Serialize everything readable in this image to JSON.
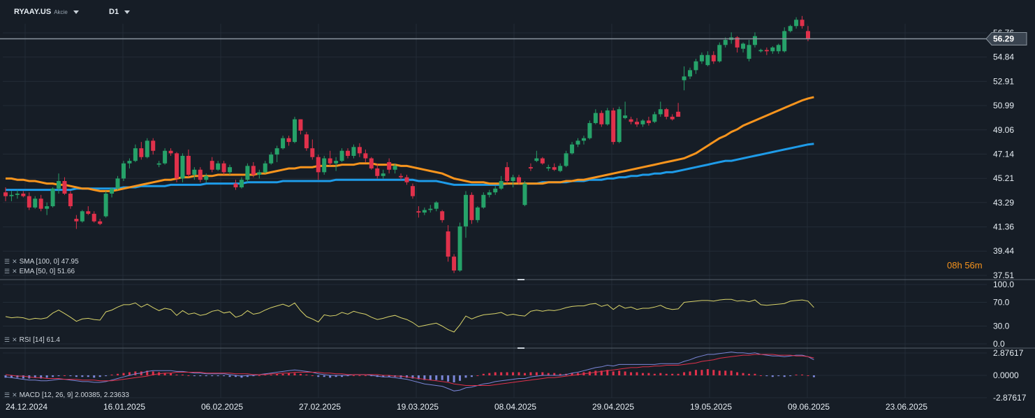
{
  "header": {
    "symbol": "RYAAY.US",
    "symbol_type": "Akcie",
    "timeframe": "D1"
  },
  "colors": {
    "background": "#161d26",
    "grid": "#232c37",
    "bull": "#26a269",
    "bear": "#e0314b",
    "sma": "#1e9be8",
    "ema": "#f7941d",
    "rsi": "#d9d46a",
    "macd_line": "#7b86d8",
    "signal_line": "#e0314b",
    "hist_pos": "#e0314b",
    "hist_neg": "#7b86d8"
  },
  "price_panel": {
    "y_ticks": [
      "56.76",
      "54.84",
      "52.91",
      "50.99",
      "49.06",
      "47.14",
      "45.21",
      "43.29",
      "41.36",
      "39.44",
      "37.51"
    ],
    "current_price": "56.29",
    "sma_label": "SMA [100, 0] 47.95",
    "ema_label": "EMA [50, 0] 51.66",
    "timer_hours": "08",
    "timer_h": "h",
    "timer_minutes": "56",
    "timer_m": "m"
  },
  "rsi_panel": {
    "label": "RSI [14] 61.4",
    "y_ticks": [
      "100.0",
      "70.0",
      "30.0",
      "0.0"
    ]
  },
  "macd_panel": {
    "label": "MACD [12, 26, 9] 2.00385, 2.23633",
    "y_ticks": [
      "2.87617",
      "0.0000",
      "-2.87617"
    ]
  },
  "x_axis": {
    "labels": [
      "24.12.2024",
      "16.01.2025",
      "06.02.2025",
      "27.02.2025",
      "19.03.2025",
      "08.04.2025",
      "29.04.2025",
      "19.05.2025",
      "09.06.2025",
      "23.06.2025"
    ]
  },
  "chart_data": {
    "type": "candlestick",
    "timeframe": "D1",
    "ylim": [
      37.51,
      57.3
    ],
    "candles": [
      [
        44.1,
        44.5,
        43.4,
        43.8
      ],
      [
        43.8,
        44.2,
        43.4,
        43.9
      ],
      [
        43.9,
        44.3,
        43.6,
        44.0
      ],
      [
        44.0,
        44.2,
        43.7,
        43.8
      ],
      [
        43.8,
        44.1,
        42.7,
        42.9
      ],
      [
        42.9,
        43.8,
        42.8,
        43.6
      ],
      [
        43.6,
        43.9,
        42.6,
        42.8
      ],
      [
        42.8,
        43.3,
        42.3,
        43.0
      ],
      [
        43.0,
        44.5,
        42.9,
        44.4
      ],
      [
        44.4,
        45.6,
        44.0,
        45.0
      ],
      [
        45.0,
        45.3,
        43.9,
        44.0
      ],
      [
        44.0,
        44.2,
        42.8,
        43.0
      ],
      [
        42.0,
        42.3,
        41.2,
        41.8
      ],
      [
        41.8,
        42.7,
        41.7,
        42.6
      ],
      [
        42.6,
        43.0,
        42.3,
        42.4
      ],
      [
        42.4,
        42.6,
        41.7,
        41.8
      ],
      [
        41.8,
        42.0,
        41.5,
        41.6
      ],
      [
        42.2,
        44.2,
        42.1,
        44.0
      ],
      [
        44.0,
        44.5,
        43.7,
        44.4
      ],
      [
        44.4,
        45.4,
        44.3,
        45.2
      ],
      [
        45.2,
        46.6,
        45.0,
        46.4
      ],
      [
        46.4,
        46.8,
        46.0,
        46.6
      ],
      [
        46.6,
        47.9,
        46.5,
        47.6
      ],
      [
        47.6,
        48.1,
        46.7,
        46.9
      ],
      [
        46.9,
        48.4,
        46.8,
        48.2
      ],
      [
        48.2,
        48.4,
        47.1,
        47.4
      ],
      [
        46.3,
        46.6,
        46.1,
        46.4
      ],
      [
        46.4,
        47.6,
        46.3,
        47.4
      ],
      [
        47.4,
        47.6,
        47.0,
        47.2
      ],
      [
        47.2,
        47.3,
        44.9,
        45.2
      ],
      [
        45.2,
        47.2,
        44.9,
        47.0
      ],
      [
        47.0,
        47.5,
        45.3,
        45.5
      ],
      [
        45.5,
        46.1,
        45.1,
        45.9
      ],
      [
        45.9,
        46.1,
        44.9,
        45.1
      ],
      [
        45.1,
        45.6,
        44.9,
        45.4
      ],
      [
        46.6,
        46.9,
        45.7,
        45.9
      ],
      [
        45.9,
        46.6,
        45.8,
        46.4
      ],
      [
        46.4,
        46.6,
        45.5,
        45.7
      ],
      [
        45.7,
        46.3,
        45.5,
        46.1
      ],
      [
        44.8,
        45.1,
        44.3,
        44.5
      ],
      [
        44.5,
        45.3,
        44.4,
        45.1
      ],
      [
        45.1,
        46.4,
        44.9,
        46.2
      ],
      [
        46.2,
        46.5,
        45.3,
        45.5
      ],
      [
        45.5,
        45.9,
        45.2,
        45.7
      ],
      [
        45.7,
        46.6,
        45.6,
        46.4
      ],
      [
        46.4,
        47.3,
        46.3,
        47.1
      ],
      [
        47.1,
        47.8,
        46.5,
        47.6
      ],
      [
        47.6,
        48.6,
        47.5,
        48.4
      ],
      [
        48.4,
        48.6,
        47.8,
        48.1
      ],
      [
        48.1,
        50.1,
        48.0,
        49.9
      ],
      [
        49.9,
        49.9,
        48.7,
        49.0
      ],
      [
        48.7,
        48.9,
        47.4,
        47.6
      ],
      [
        47.6,
        48.3,
        46.7,
        46.9
      ],
      [
        46.9,
        47.1,
        45.1,
        45.7
      ],
      [
        45.7,
        47.0,
        45.5,
        46.8
      ],
      [
        46.8,
        47.4,
        46.2,
        46.4
      ],
      [
        46.4,
        46.9,
        45.8,
        46.6
      ],
      [
        46.6,
        47.6,
        46.5,
        47.4
      ],
      [
        47.4,
        47.6,
        46.8,
        47.0
      ],
      [
        47.0,
        47.9,
        46.8,
        47.7
      ],
      [
        47.7,
        48.0,
        46.9,
        47.2
      ],
      [
        47.2,
        47.5,
        46.5,
        46.8
      ],
      [
        46.8,
        46.9,
        45.9,
        46.0
      ],
      [
        46.0,
        46.4,
        45.2,
        45.4
      ],
      [
        45.4,
        45.9,
        45.2,
        45.6
      ],
      [
        46.5,
        46.8,
        45.6,
        45.9
      ],
      [
        45.9,
        46.4,
        45.6,
        46.2
      ],
      [
        45.4,
        45.6,
        45.1,
        45.3
      ],
      [
        45.3,
        45.5,
        44.7,
        44.9
      ],
      [
        44.6,
        44.8,
        43.6,
        43.8
      ],
      [
        42.6,
        43.0,
        42.1,
        42.5
      ],
      [
        42.5,
        42.9,
        42.3,
        42.7
      ],
      [
        42.7,
        43.1,
        42.5,
        42.8
      ],
      [
        42.8,
        43.4,
        42.6,
        43.3
      ],
      [
        42.6,
        42.7,
        41.7,
        41.9
      ],
      [
        41.0,
        41.5,
        38.6,
        39.0
      ],
      [
        39.0,
        39.2,
        37.7,
        37.9
      ],
      [
        37.9,
        41.7,
        37.8,
        41.4
      ],
      [
        41.4,
        44.2,
        40.5,
        43.9
      ],
      [
        43.9,
        44.1,
        41.6,
        41.9
      ],
      [
        41.9,
        43.0,
        41.7,
        42.9
      ],
      [
        42.9,
        44.1,
        42.8,
        43.9
      ],
      [
        43.9,
        44.3,
        43.7,
        44.1
      ],
      [
        44.1,
        44.6,
        43.9,
        44.4
      ],
      [
        44.4,
        45.4,
        44.3,
        45.0
      ],
      [
        46.1,
        46.5,
        44.8,
        45.0
      ],
      [
        45.0,
        45.5,
        44.5,
        45.3
      ],
      [
        45.3,
        45.5,
        44.7,
        44.9
      ],
      [
        43.1,
        45.0,
        43.0,
        44.8
      ],
      [
        46.1,
        46.4,
        45.8,
        46.0
      ],
      [
        46.6,
        47.4,
        46.5,
        46.8
      ],
      [
        46.8,
        46.9,
        46.3,
        46.4
      ],
      [
        46.0,
        46.3,
        45.8,
        46.1
      ],
      [
        46.1,
        46.4,
        45.8,
        45.9
      ],
      [
        45.8,
        46.4,
        45.7,
        46.2
      ],
      [
        46.2,
        47.4,
        46.1,
        47.2
      ],
      [
        47.2,
        48.1,
        47.1,
        47.9
      ],
      [
        47.9,
        48.4,
        47.7,
        48.2
      ],
      [
        48.2,
        48.6,
        47.9,
        48.4
      ],
      [
        48.4,
        49.8,
        48.3,
        49.6
      ],
      [
        49.6,
        50.7,
        49.5,
        50.4
      ],
      [
        50.4,
        50.6,
        49.3,
        49.5
      ],
      [
        49.5,
        50.8,
        49.4,
        50.6
      ],
      [
        50.6,
        50.8,
        47.9,
        48.1
      ],
      [
        48.1,
        50.9,
        48.0,
        50.7
      ],
      [
        50.0,
        51.3,
        49.9,
        50.2
      ],
      [
        49.9,
        50.1,
        49.5,
        49.7
      ],
      [
        49.7,
        50.0,
        49.3,
        49.5
      ],
      [
        49.5,
        49.9,
        49.3,
        49.8
      ],
      [
        49.8,
        50.1,
        49.4,
        49.6
      ],
      [
        49.7,
        50.5,
        49.6,
        50.3
      ],
      [
        50.3,
        51.3,
        50.1,
        50.7
      ],
      [
        50.7,
        50.8,
        49.9,
        50.1
      ],
      [
        50.1,
        50.3,
        49.8,
        49.9
      ],
      [
        50.5,
        51.2,
        50.1,
        50.1
      ],
      [
        53.0,
        54.1,
        52.2,
        53.3
      ],
      [
        53.3,
        54.0,
        53.1,
        53.8
      ],
      [
        53.8,
        54.7,
        53.5,
        54.5
      ],
      [
        54.5,
        55.2,
        54.3,
        55.0
      ],
      [
        54.2,
        55.3,
        54.1,
        55.0
      ],
      [
        55.0,
        55.3,
        54.3,
        54.5
      ],
      [
        54.5,
        56.0,
        54.4,
        55.8
      ],
      [
        55.8,
        56.4,
        55.6,
        56.2
      ],
      [
        56.2,
        56.8,
        55.9,
        56.4
      ],
      [
        56.4,
        56.5,
        55.2,
        55.6
      ],
      [
        55.5,
        56.0,
        55.2,
        55.9
      ],
      [
        54.7,
        56.2,
        54.5,
        55.8
      ],
      [
        55.8,
        56.8,
        55.6,
        56.5
      ],
      [
        55.3,
        55.5,
        55.2,
        55.4
      ],
      [
        55.4,
        55.6,
        55.0,
        55.3
      ],
      [
        55.3,
        55.7,
        55.1,
        55.6
      ],
      [
        55.3,
        55.9,
        55.1,
        55.8
      ],
      [
        55.3,
        57.2,
        55.2,
        56.9
      ],
      [
        56.9,
        57.4,
        56.8,
        57.3
      ],
      [
        57.3,
        58.0,
        57.1,
        57.8
      ],
      [
        57.8,
        58.1,
        57.1,
        57.3
      ],
      [
        56.9,
        57.3,
        56.1,
        56.3
      ]
    ],
    "sma_100": [
      44.3,
      44.3,
      44.3,
      44.3,
      44.3,
      44.3,
      44.3,
      44.3,
      44.3,
      44.3,
      44.3,
      44.3,
      44.4,
      44.4,
      44.4,
      44.4,
      44.4,
      44.4,
      44.4,
      44.4,
      44.5,
      44.5,
      44.5,
      44.6,
      44.6,
      44.6,
      44.6,
      44.6,
      44.7,
      44.7,
      44.7,
      44.7,
      44.7,
      44.7,
      44.8,
      44.8,
      44.8,
      44.8,
      44.8,
      44.8,
      44.8,
      44.9,
      44.9,
      44.9,
      44.9,
      44.9,
      44.9,
      45.0,
      45.0,
      45.0,
      45.0,
      45.0,
      45.0,
      45.0,
      45.0,
      45.0,
      45.1,
      45.1,
      45.1,
      45.1,
      45.1,
      45.1,
      45.1,
      45.1,
      45.1,
      45.1,
      45.1,
      45.1,
      45.1,
      45.1,
      45.0,
      45.0,
      45.0,
      45.0,
      44.9,
      44.8,
      44.7,
      44.7,
      44.7,
      44.7,
      44.7,
      44.7,
      44.7,
      44.7,
      44.7,
      44.8,
      44.8,
      44.8,
      44.8,
      44.8,
      44.8,
      44.9,
      44.9,
      44.9,
      44.9,
      44.9,
      45.0,
      45.0,
      45.0,
      45.1,
      45.1,
      45.1,
      45.2,
      45.2,
      45.3,
      45.3,
      45.4,
      45.4,
      45.5,
      45.5,
      45.6,
      45.6,
      45.7,
      45.7,
      45.8,
      45.9,
      46.0,
      46.1,
      46.2,
      46.3,
      46.4,
      46.5,
      46.6,
      46.6,
      46.7,
      46.8,
      46.9,
      47.0,
      47.1,
      47.2,
      47.3,
      47.4,
      47.5,
      47.6,
      47.7,
      47.8,
      47.9,
      47.95
    ],
    "ema_50": [
      45.2,
      45.2,
      45.1,
      45.1,
      45.0,
      45.0,
      44.9,
      44.8,
      44.8,
      44.7,
      44.7,
      44.6,
      44.5,
      44.4,
      44.4,
      44.3,
      44.2,
      44.2,
      44.2,
      44.3,
      44.4,
      44.5,
      44.6,
      44.7,
      44.8,
      44.9,
      45.0,
      45.1,
      45.1,
      45.2,
      45.3,
      45.3,
      45.4,
      45.4,
      45.4,
      45.4,
      45.5,
      45.5,
      45.5,
      45.5,
      45.5,
      45.5,
      45.5,
      45.6,
      45.6,
      45.7,
      45.8,
      45.9,
      46.0,
      46.0,
      46.1,
      46.1,
      46.1,
      46.2,
      46.2,
      46.2,
      46.2,
      46.3,
      46.3,
      46.3,
      46.4,
      46.4,
      46.4,
      46.3,
      46.3,
      46.3,
      46.3,
      46.2,
      46.2,
      46.1,
      46.0,
      45.9,
      45.8,
      45.7,
      45.6,
      45.4,
      45.2,
      45.1,
      45.0,
      44.9,
      44.9,
      44.9,
      44.8,
      44.8,
      44.8,
      44.8,
      44.8,
      44.8,
      44.8,
      44.8,
      44.8,
      44.8,
      44.9,
      44.9,
      44.9,
      45.0,
      45.0,
      45.1,
      45.1,
      45.2,
      45.3,
      45.4,
      45.5,
      45.6,
      45.7,
      45.8,
      45.9,
      46.0,
      46.1,
      46.2,
      46.3,
      46.4,
      46.5,
      46.6,
      46.7,
      46.8,
      47.0,
      47.2,
      47.5,
      47.8,
      48.1,
      48.4,
      48.6,
      48.9,
      49.1,
      49.4,
      49.6,
      49.8,
      50.0,
      50.2,
      50.4,
      50.6,
      50.8,
      51.0,
      51.2,
      51.4,
      51.55,
      51.66
    ],
    "rsi": [
      46,
      44,
      45,
      44,
      41,
      43,
      42,
      44,
      52,
      57,
      51,
      45,
      38,
      42,
      43,
      41,
      40,
      54,
      57,
      62,
      66,
      66,
      69,
      62,
      67,
      61,
      56,
      60,
      58,
      48,
      56,
      50,
      52,
      48,
      50,
      55,
      57,
      52,
      54,
      45,
      48,
      56,
      50,
      52,
      57,
      61,
      64,
      67,
      63,
      69,
      56,
      46,
      42,
      37,
      49,
      47,
      48,
      53,
      50,
      55,
      52,
      50,
      45,
      41,
      43,
      46,
      48,
      44,
      41,
      36,
      29,
      31,
      33,
      35,
      30,
      24,
      20,
      32,
      47,
      42,
      46,
      49,
      50,
      51,
      53,
      48,
      50,
      48,
      47,
      55,
      57,
      55,
      57,
      56,
      58,
      61,
      63,
      64,
      64,
      67,
      68,
      63,
      66,
      58,
      65,
      60,
      62,
      58,
      60,
      60,
      62,
      65,
      60,
      58,
      59,
      70,
      71,
      72,
      73,
      73,
      72,
      74,
      75,
      75,
      72,
      73,
      71,
      74,
      66,
      65,
      66,
      67,
      68,
      72,
      73,
      74,
      72,
      61.4
    ],
    "macd": [
      -0.2,
      -0.3,
      -0.4,
      -0.5,
      -0.6,
      -0.6,
      -0.7,
      -0.7,
      -0.6,
      -0.5,
      -0.5,
      -0.6,
      -0.7,
      -0.8,
      -0.8,
      -0.9,
      -0.9,
      -0.8,
      -0.6,
      -0.4,
      -0.2,
      0.0,
      0.2,
      0.3,
      0.5,
      0.6,
      0.6,
      0.6,
      0.6,
      0.5,
      0.5,
      0.4,
      0.3,
      0.3,
      0.2,
      0.2,
      0.2,
      0.2,
      0.1,
      0.0,
      -0.1,
      0.0,
      0.0,
      0.1,
      0.2,
      0.3,
      0.4,
      0.5,
      0.6,
      0.7,
      0.6,
      0.5,
      0.4,
      0.2,
      0.1,
      0.0,
      0.0,
      0.0,
      0.0,
      0.1,
      0.1,
      0.1,
      0.0,
      -0.1,
      -0.2,
      -0.2,
      -0.3,
      -0.4,
      -0.5,
      -0.7,
      -0.9,
      -1.1,
      -1.2,
      -1.3,
      -1.4,
      -1.7,
      -2.0,
      -1.9,
      -1.6,
      -1.5,
      -1.3,
      -1.1,
      -1.0,
      -0.8,
      -0.7,
      -0.6,
      -0.5,
      -0.4,
      -0.4,
      -0.2,
      -0.1,
      0.0,
      0.0,
      0.0,
      0.0,
      0.1,
      0.3,
      0.4,
      0.6,
      0.8,
      1.0,
      1.1,
      1.3,
      1.2,
      1.4,
      1.4,
      1.4,
      1.4,
      1.4,
      1.4,
      1.4,
      1.5,
      1.5,
      1.5,
      1.5,
      1.8,
      2.0,
      2.3,
      2.5,
      2.7,
      2.7,
      2.8,
      2.9,
      3.0,
      2.9,
      2.9,
      2.8,
      2.9,
      2.7,
      2.6,
      2.5,
      2.5,
      2.4,
      2.5,
      2.6,
      2.6,
      2.4,
      2.00385
    ],
    "signal": [
      0.1,
      0.0,
      -0.1,
      -0.1,
      -0.2,
      -0.3,
      -0.3,
      -0.4,
      -0.4,
      -0.4,
      -0.5,
      -0.5,
      -0.5,
      -0.6,
      -0.6,
      -0.6,
      -0.7,
      -0.7,
      -0.7,
      -0.6,
      -0.5,
      -0.4,
      -0.3,
      -0.2,
      -0.1,
      0.1,
      0.2,
      0.3,
      0.3,
      0.4,
      0.4,
      0.4,
      0.4,
      0.4,
      0.3,
      0.3,
      0.3,
      0.3,
      0.3,
      0.2,
      0.2,
      0.2,
      0.1,
      0.1,
      0.1,
      0.2,
      0.2,
      0.3,
      0.3,
      0.4,
      0.4,
      0.4,
      0.4,
      0.4,
      0.3,
      0.3,
      0.2,
      0.2,
      0.1,
      0.1,
      0.1,
      0.1,
      0.1,
      0.1,
      0.0,
      0.0,
      -0.1,
      -0.1,
      -0.2,
      -0.3,
      -0.4,
      -0.5,
      -0.6,
      -0.7,
      -0.8,
      -0.9,
      -1.1,
      -1.2,
      -1.3,
      -1.3,
      -1.3,
      -1.3,
      -1.3,
      -1.2,
      -1.1,
      -1.0,
      -0.9,
      -0.8,
      -0.7,
      -0.6,
      -0.5,
      -0.4,
      -0.3,
      -0.3,
      -0.2,
      -0.1,
      0.0,
      0.1,
      0.2,
      0.3,
      0.4,
      0.5,
      0.6,
      0.7,
      0.8,
      0.9,
      1.0,
      1.0,
      1.1,
      1.1,
      1.2,
      1.2,
      1.3,
      1.3,
      1.3,
      1.4,
      1.5,
      1.6,
      1.8,
      1.9,
      2.0,
      2.2,
      2.3,
      2.4,
      2.5,
      2.6,
      2.6,
      2.7,
      2.7,
      2.7,
      2.7,
      2.6,
      2.6,
      2.6,
      2.5,
      2.5,
      2.4,
      2.23633
    ]
  }
}
